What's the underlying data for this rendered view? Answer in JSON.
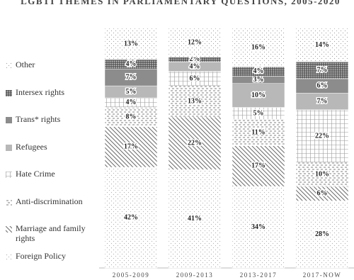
{
  "chart_data": {
    "type": "stacked_bar",
    "title": "LGBTI THEMES IN PARLIAMENTARY QUESTIONS, 2005-2020",
    "categories": [
      "2005-2009",
      "2009-2013",
      "2013-2017",
      "2017-NOW"
    ],
    "ylim": [
      0,
      100
    ],
    "series": [
      {
        "name": "Foreign Policy",
        "color": "#b0b0b0",
        "values": [
          42,
          41,
          34,
          28
        ],
        "value_labels": [
          "42%",
          "41%",
          "34%",
          "28%"
        ]
      },
      {
        "name": "Marriage and family rights",
        "color": "#6a6a6a",
        "values": [
          17,
          22,
          17,
          6
        ],
        "value_labels": [
          "17%",
          "22%",
          "17%",
          "6%"
        ]
      },
      {
        "name": "Anti-discrimination",
        "color": "#555555",
        "values": [
          8,
          13,
          11,
          10
        ],
        "value_labels": [
          "8%",
          "13%",
          "11%",
          "10%"
        ]
      },
      {
        "name": "Hate Crime",
        "color": "#9a9a9a",
        "values": [
          4,
          6,
          5,
          22
        ],
        "value_labels": [
          "4%",
          "6%",
          "5%",
          "22%"
        ]
      },
      {
        "name": "Refugees",
        "color": "#b8b8b8",
        "values": [
          5,
          4,
          10,
          7
        ],
        "value_labels": [
          "5%",
          "4%",
          "10%",
          "7%"
        ]
      },
      {
        "name": "Trans* rights",
        "color": "#8c8c8c",
        "values": [
          7,
          0,
          3,
          6
        ],
        "value_labels": [
          "7%",
          null,
          "3%",
          "6%"
        ]
      },
      {
        "name": "Intersex rights",
        "color": "#3c3c3c",
        "values": [
          4,
          2,
          4,
          7
        ],
        "value_labels": [
          "4%",
          "2%",
          "4%",
          "7%"
        ]
      },
      {
        "name": "Other",
        "color": "#a0a0a0",
        "values": [
          13,
          12,
          16,
          14
        ],
        "value_labels": [
          "13%",
          "12%",
          "16%",
          "14%"
        ]
      }
    ]
  }
}
